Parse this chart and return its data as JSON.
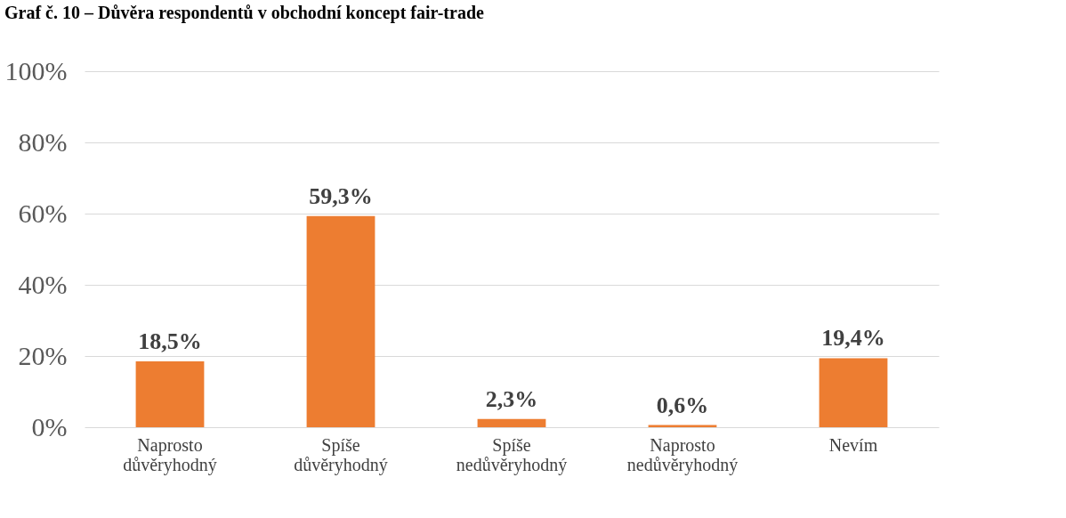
{
  "chart_data": {
    "type": "bar",
    "title": "Graf č. 10 – Důvěra respondentů v obchodní koncept fair-trade",
    "categories": [
      "Naprosto důvěryhodný",
      "Spíše důvěryhodný",
      "Spíše nedůvěryhodný",
      "Naprosto nedůvěryhodný",
      "Nevím"
    ],
    "values": [
      18.5,
      59.3,
      2.3,
      0.6,
      19.4
    ],
    "value_labels": [
      "18,5%",
      "59,3%",
      "2,3%",
      "0,6%",
      "19,4%"
    ],
    "color": "#ed7d31",
    "ylim": [
      0,
      100
    ],
    "yticks": [
      {
        "value": 0,
        "label": "0%"
      },
      {
        "value": 20,
        "label": "20%"
      },
      {
        "value": 40,
        "label": "40%"
      },
      {
        "value": 60,
        "label": "60%"
      },
      {
        "value": 80,
        "label": "80%"
      },
      {
        "value": 100,
        "label": "100%"
      }
    ],
    "grid": "y"
  }
}
